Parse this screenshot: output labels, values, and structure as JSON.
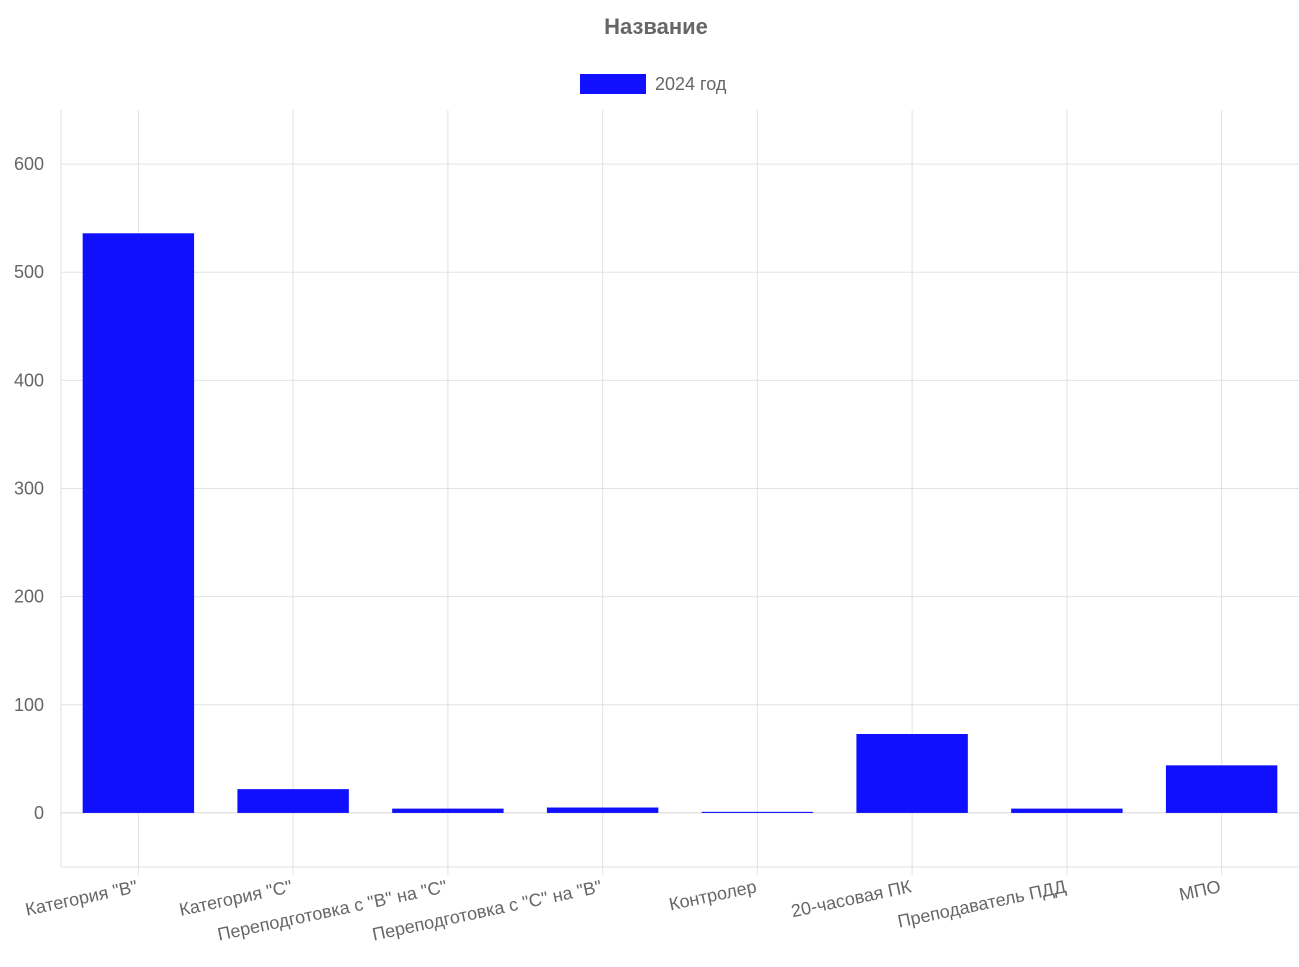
{
  "chart_data": {
    "type": "bar",
    "title": "Название",
    "categories": [
      "Категория \"B\"",
      "Категория \"C\"",
      "Переподготовка с \"B\" на \"C\"",
      "Переподготовка с \"C\" на \"B\"",
      "Контролер",
      "20-часовая ПК",
      "Преподаватель ПДД",
      "МПО"
    ],
    "series": [
      {
        "name": "2024 год",
        "color": "#1010ff",
        "values": [
          536,
          22,
          4,
          5,
          1,
          73,
          4,
          44
        ]
      }
    ],
    "yticks": [
      0,
      100,
      200,
      300,
      400,
      500,
      600
    ],
    "ylim": [
      -50,
      650
    ],
    "xlabel": "",
    "ylabel": "",
    "grid": true,
    "legend_position": "top-center"
  }
}
